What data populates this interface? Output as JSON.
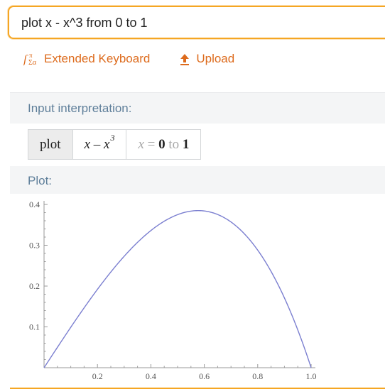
{
  "search": {
    "query": "plot x - x^3 from 0 to 1"
  },
  "toolbar": {
    "keyboard_label": "Extended Keyboard",
    "upload_label": "Upload",
    "accent_color": "#dd6b1d"
  },
  "input_pod": {
    "title": "Input interpretation:",
    "cells": {
      "command": "plot",
      "expr_main": "x – x",
      "expr_exp": "3",
      "range_var": "x",
      "range_eq": " = ",
      "range_from": "0",
      "range_to_word": " to ",
      "range_to": "1"
    }
  },
  "plot_pod": {
    "title": "Plot:"
  },
  "chart_data": {
    "type": "line",
    "title": "",
    "xlabel": "",
    "ylabel": "",
    "function": "x - x^3",
    "xlim": [
      0,
      1
    ],
    "ylim": [
      0,
      0.4
    ],
    "x_ticks": [
      "0.2",
      "0.4",
      "0.6",
      "0.8",
      "1.0"
    ],
    "y_ticks": [
      "0.1",
      "0.2",
      "0.3",
      "0.4"
    ],
    "series": [
      {
        "x": [
          0,
          0.05,
          0.1,
          0.15,
          0.2,
          0.25,
          0.3,
          0.35,
          0.4,
          0.45,
          0.5,
          0.55,
          0.577,
          0.6,
          0.65,
          0.7,
          0.75,
          0.8,
          0.85,
          0.9,
          0.95,
          1.0
        ],
        "y": [
          0,
          0.0499,
          0.099,
          0.1466,
          0.192,
          0.2344,
          0.273,
          0.3071,
          0.336,
          0.3589,
          0.375,
          0.3836,
          0.3849,
          0.384,
          0.3754,
          0.357,
          0.3281,
          0.288,
          0.2359,
          0.171,
          0.0926,
          0
        ],
        "color": "#7b7fd0"
      }
    ],
    "grid": false
  }
}
